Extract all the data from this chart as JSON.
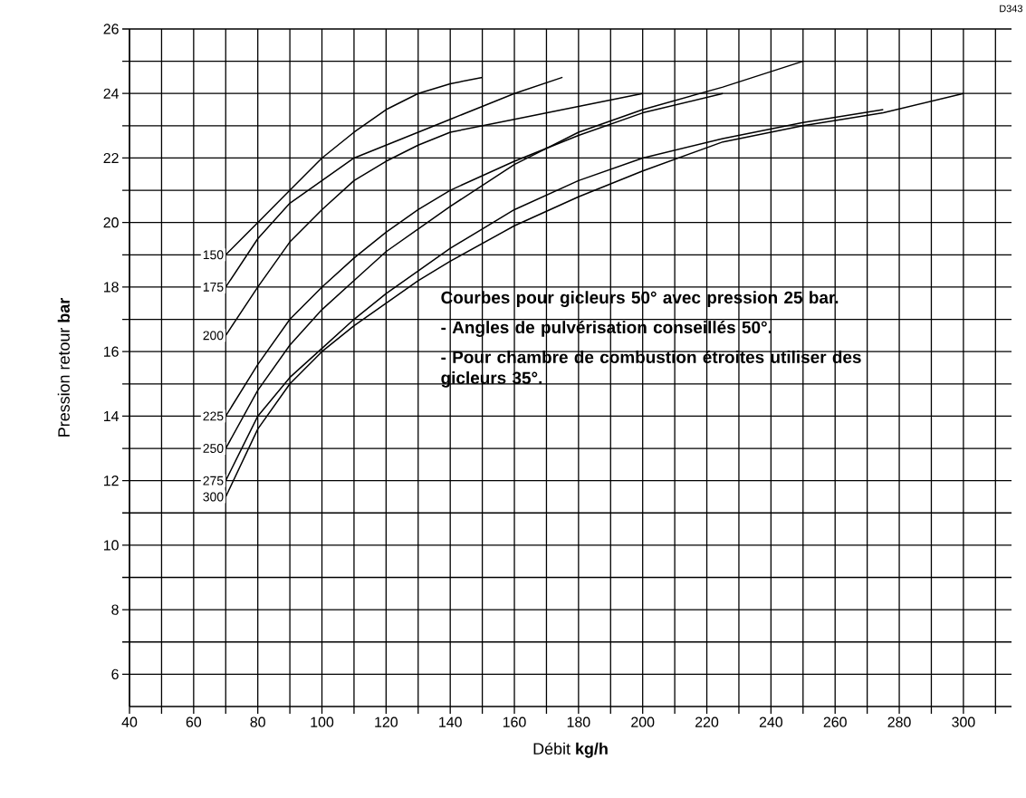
{
  "chart_data": {
    "type": "line",
    "xlabel": "Débit **kg/h**",
    "ylabel": "Pression retour **bar**",
    "annotations": [
      "D343",
      "Courbes pour gicleurs 50° avec pression 25 bar.",
      "- Angles de pulvérisation conseillés 50°.",
      "- Pour chambre de combustion étroites utiliser des gicleurs 35°."
    ],
    "xlim": [
      40,
      315
    ],
    "ylim": [
      5,
      26
    ],
    "xticks": [
      40,
      {
        "value": 50,
        "label": null
      },
      60,
      {
        "value": 70,
        "label": null
      },
      80,
      {
        "value": 90,
        "label": null
      },
      100,
      {
        "value": 110,
        "label": null
      },
      120,
      {
        "value": 130,
        "label": null
      },
      140,
      {
        "value": 150,
        "label": null
      },
      160,
      {
        "value": 170,
        "label": null
      },
      180,
      {
        "value": 190,
        "label": null
      },
      200,
      {
        "value": 210,
        "label": null
      },
      220,
      {
        "value": 230,
        "label": null
      },
      240,
      {
        "value": 250,
        "label": null
      },
      260,
      {
        "value": 270,
        "label": null
      },
      280,
      {
        "value": 290,
        "label": null
      },
      300,
      {
        "value": 310,
        "label": null
      }
    ],
    "yticks": [
      6,
      {
        "value": 7,
        "label": null
      },
      8,
      {
        "value": 9,
        "label": null
      },
      10,
      {
        "value": 11,
        "label": null
      },
      12,
      {
        "value": 13,
        "label": null
      },
      14,
      {
        "value": 15,
        "label": null
      },
      16,
      {
        "value": 17,
        "label": null
      },
      18,
      {
        "value": 19,
        "label": null
      },
      20,
      {
        "value": 21,
        "label": null
      },
      22,
      {
        "value": 23,
        "label": null
      },
      24,
      {
        "value": 25,
        "label": null
      },
      26
    ],
    "grid": true,
    "legend": false,
    "marker": "none",
    "line_style": "solid",
    "series": [
      {
        "name": "150",
        "color": "#000000",
        "x": [
          70,
          80,
          90,
          100,
          110,
          120,
          130,
          140,
          150
        ],
        "values": [
          19,
          20,
          21,
          22,
          22.8,
          23.5,
          24,
          24.3,
          24.5
        ]
      },
      {
        "name": "175",
        "color": "#000000",
        "x": [
          70,
          80,
          90,
          100,
          110,
          120,
          130,
          140,
          150,
          160,
          175
        ],
        "values": [
          18,
          19.5,
          20.6,
          21.3,
          22,
          22.4,
          22.8,
          23.2,
          23.6,
          24,
          24.5
        ]
      },
      {
        "name": "200",
        "color": "#000000",
        "x": [
          70,
          80,
          90,
          100,
          110,
          120,
          130,
          140,
          160,
          180,
          200
        ],
        "values": [
          16.5,
          18,
          19.4,
          20.4,
          21.3,
          21.9,
          22.4,
          22.8,
          23.2,
          23.6,
          24
        ]
      },
      {
        "name": "225",
        "color": "#000000",
        "x": [
          70,
          80,
          90,
          100,
          110,
          120,
          130,
          140,
          160,
          180,
          200,
          225
        ],
        "values": [
          14,
          15.6,
          17,
          18,
          18.9,
          19.7,
          20.4,
          21,
          21.9,
          22.7,
          23.4,
          24
        ]
      },
      {
        "name": "250",
        "color": "#000000",
        "x": [
          70,
          80,
          90,
          100,
          110,
          120,
          130,
          140,
          160,
          180,
          200,
          225,
          250
        ],
        "values": [
          13,
          14.8,
          16.2,
          17.3,
          18.2,
          19.1,
          19.8,
          20.5,
          21.8,
          22.8,
          23.5,
          24.2,
          25
        ]
      },
      {
        "name": "275",
        "color": "#000000",
        "x": [
          70,
          80,
          90,
          100,
          110,
          120,
          130,
          140,
          160,
          180,
          200,
          225,
          250,
          275
        ],
        "values": [
          12,
          14,
          15.2,
          16.1,
          17,
          17.8,
          18.5,
          19.2,
          20.4,
          21.3,
          22,
          22.6,
          23.1,
          23.5
        ]
      },
      {
        "name": "300",
        "color": "#000000",
        "x": [
          70,
          80,
          90,
          100,
          110,
          120,
          130,
          140,
          160,
          180,
          200,
          225,
          250,
          275,
          300
        ],
        "values": [
          11.5,
          13.6,
          15,
          16,
          16.8,
          17.5,
          18.2,
          18.8,
          19.9,
          20.8,
          21.6,
          22.5,
          23,
          23.4,
          24
        ]
      }
    ]
  }
}
